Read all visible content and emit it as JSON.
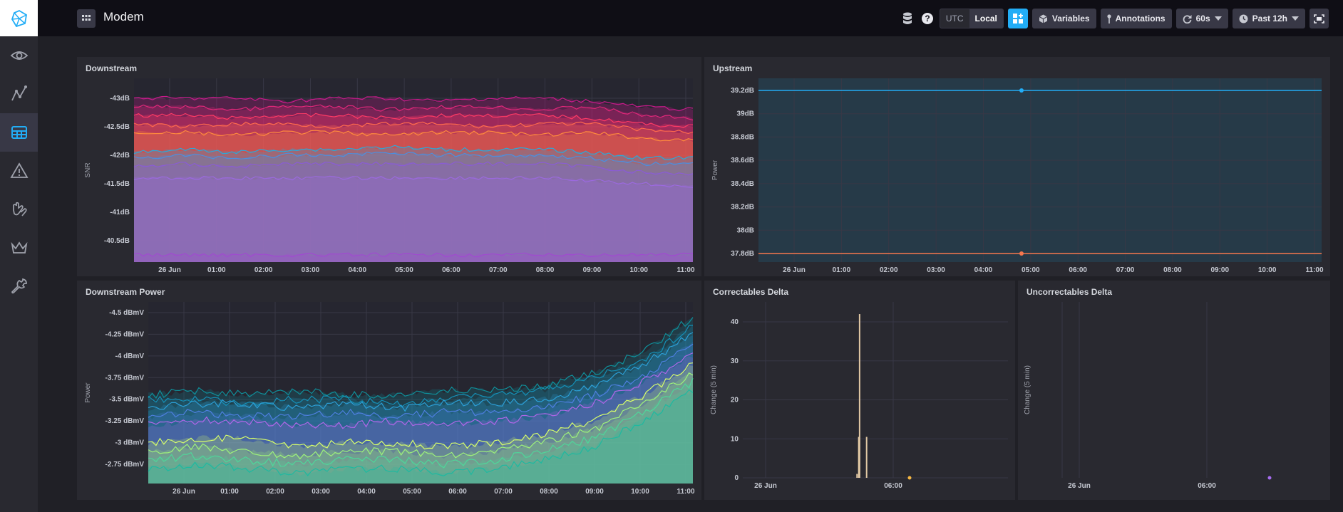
{
  "header": {
    "title": "Modem",
    "time_zone": {
      "utc": "UTC",
      "local": "Local",
      "selected": "Local"
    },
    "variables_label": "Variables",
    "annotations_label": "Annotations",
    "refresh_label": "60s",
    "range_label": "Past 12h"
  },
  "sidebar": {
    "items": [
      {
        "icon": "eye-icon",
        "active": false
      },
      {
        "icon": "graph-icon",
        "active": false
      },
      {
        "icon": "dashboard-grid-icon",
        "active": true
      },
      {
        "icon": "alert-triangle-icon",
        "active": false
      },
      {
        "icon": "gloves-icon",
        "active": false
      },
      {
        "icon": "crown-icon",
        "active": false
      },
      {
        "icon": "wrench-icon",
        "active": false
      }
    ]
  },
  "colors": {
    "accent": "#22adf6",
    "sidebar": "#292930",
    "panel": "#292930",
    "background": "#202026"
  },
  "panels": {
    "downstream": {
      "title": "Downstream"
    },
    "upstream": {
      "title": "Upstream"
    },
    "downstream_power": {
      "title": "Downstream Power"
    },
    "correctables": {
      "title": "Correctables Delta"
    },
    "uncorrectables": {
      "title": "Uncorrectables Delta"
    }
  },
  "chart_data": [
    {
      "id": "downstream",
      "type": "area",
      "title": "Downstream",
      "ylabel": "SNR",
      "yticks": [
        "-43dB",
        "-42.5dB",
        "-42dB",
        "-41.5dB",
        "-41dB",
        "-40.5dB"
      ],
      "xticks": [
        "26 Jun",
        "01:00",
        "02:00",
        "03:00",
        "04:00",
        "05:00",
        "06:00",
        "07:00",
        "08:00",
        "09:00",
        "10:00",
        "11:00"
      ],
      "series": [
        {
          "values": [
            -43.0,
            -43.0,
            -43.0,
            -42.95,
            -43.0,
            -43.0,
            -42.95,
            -43.0,
            -43.0,
            -42.95,
            -42.85,
            -42.8
          ],
          "color": "#c81a8b"
        },
        {
          "values": [
            -42.85,
            -42.85,
            -42.8,
            -42.85,
            -42.85,
            -42.8,
            -42.85,
            -42.85,
            -42.8,
            -42.85,
            -42.7,
            -42.65
          ],
          "color": "#e0277a"
        },
        {
          "values": [
            -42.7,
            -42.7,
            -42.65,
            -42.7,
            -42.7,
            -42.65,
            -42.7,
            -42.7,
            -42.7,
            -42.65,
            -42.55,
            -42.5
          ],
          "color": "#ff3a66"
        },
        {
          "values": [
            -42.55,
            -42.5,
            -42.55,
            -42.55,
            -42.5,
            -42.55,
            -42.55,
            -42.5,
            -42.55,
            -42.55,
            -42.45,
            -42.4
          ],
          "color": "#ff6a4d"
        },
        {
          "values": [
            -42.4,
            -42.4,
            -42.35,
            -42.4,
            -42.4,
            -42.35,
            -42.4,
            -42.4,
            -42.35,
            -42.4,
            -42.3,
            -42.25
          ],
          "color": "#ff8a3d"
        },
        {
          "values": [
            -42.05,
            -42.1,
            -42.05,
            -42.1,
            -42.1,
            -42.15,
            -42.1,
            -42.1,
            -42.1,
            -42.05,
            -41.95,
            -41.95
          ],
          "color": "#2ca8d8"
        },
        {
          "values": [
            -41.95,
            -42.0,
            -41.95,
            -42.0,
            -42.0,
            -42.05,
            -42.0,
            -42.0,
            -42.0,
            -41.95,
            -41.85,
            -41.85
          ],
          "color": "#4b8fe0"
        },
        {
          "values": [
            -41.8,
            -41.85,
            -41.8,
            -41.85,
            -41.85,
            -41.85,
            -41.85,
            -41.85,
            -41.85,
            -41.8,
            -41.7,
            -41.65
          ],
          "color": "#8a5cd6"
        },
        {
          "values": [
            -41.6,
            -41.6,
            -41.6,
            -41.6,
            -41.6,
            -41.6,
            -41.6,
            -41.6,
            -41.6,
            -41.55,
            -41.5,
            -41.45
          ],
          "color": "#9b6ade"
        },
        {
          "values": [
            -40.25,
            -40.25,
            -40.25,
            -40.25,
            -40.25,
            -40.25,
            -40.25,
            -40.25,
            -40.25,
            -40.25,
            -40.25,
            -40.25
          ],
          "color": "#a04ad0"
        }
      ]
    },
    {
      "id": "upstream",
      "type": "line",
      "title": "Upstream",
      "ylabel": "Power",
      "yticks": [
        "39.2dB",
        "39dB",
        "38.8dB",
        "38.6dB",
        "38.4dB",
        "38.2dB",
        "38dB",
        "37.8dB"
      ],
      "xticks": [
        "26 Jun",
        "01:00",
        "02:00",
        "03:00",
        "04:00",
        "05:00",
        "06:00",
        "07:00",
        "08:00",
        "09:00",
        "10:00",
        "11:00"
      ],
      "series": [
        {
          "values": [
            39.2,
            39.2
          ],
          "color": "#22adf6"
        },
        {
          "values": [
            37.8,
            37.8
          ],
          "color": "#f5774e"
        }
      ]
    },
    {
      "id": "downstream_power",
      "type": "area",
      "title": "Downstream Power",
      "ylabel": "Power",
      "yticks": [
        "-4.5 dBmV",
        "-4.25 dBmV",
        "-4 dBmV",
        "-3.75 dBmV",
        "-3.5 dBmV",
        "-3.25 dBmV",
        "-3 dBmV",
        "-2.75 dBmV"
      ],
      "xticks": [
        "26 Jun",
        "01:00",
        "02:00",
        "03:00",
        "04:00",
        "05:00",
        "06:00",
        "07:00",
        "08:00",
        "09:00",
        "10:00",
        "11:00"
      ],
      "series": [
        {
          "values": [
            -3.55,
            -3.6,
            -3.55,
            -3.6,
            -3.55,
            -3.55,
            -3.6,
            -3.6,
            -3.65,
            -3.8,
            -4.05,
            -4.45
          ],
          "color": "#0f8f9a"
        },
        {
          "values": [
            -3.5,
            -3.5,
            -3.45,
            -3.5,
            -3.5,
            -3.45,
            -3.5,
            -3.55,
            -3.6,
            -3.75,
            -3.95,
            -4.35
          ],
          "color": "#1590b7"
        },
        {
          "values": [
            -3.4,
            -3.45,
            -3.45,
            -3.4,
            -3.45,
            -3.4,
            -3.45,
            -3.45,
            -3.5,
            -3.65,
            -3.9,
            -4.25
          ],
          "color": "#2c9fd6"
        },
        {
          "values": [
            -3.3,
            -3.35,
            -3.3,
            -3.3,
            -3.35,
            -3.3,
            -3.35,
            -3.35,
            -3.4,
            -3.55,
            -3.75,
            -4.15
          ],
          "color": "#4e7fe0"
        },
        {
          "values": [
            -3.2,
            -3.25,
            -3.25,
            -3.2,
            -3.2,
            -3.25,
            -3.2,
            -3.25,
            -3.3,
            -3.45,
            -3.7,
            -4.0
          ],
          "color": "#b066e8"
        },
        {
          "values": [
            -3.0,
            -3.05,
            -3.05,
            -2.95,
            -3.0,
            -3.0,
            -2.95,
            -3.0,
            -3.1,
            -3.25,
            -3.55,
            -3.9
          ],
          "color": "#d8ff6a"
        },
        {
          "values": [
            -2.9,
            -2.95,
            -2.9,
            -2.85,
            -2.9,
            -2.9,
            -2.85,
            -2.9,
            -3.0,
            -3.15,
            -3.45,
            -3.8
          ],
          "color": "#9ef27a"
        },
        {
          "values": [
            -2.8,
            -2.85,
            -2.8,
            -2.75,
            -2.8,
            -2.8,
            -2.75,
            -2.8,
            -2.9,
            -3.05,
            -3.35,
            -3.7
          ],
          "color": "#4fd69a"
        },
        {
          "values": [
            -2.7,
            -2.75,
            -2.7,
            -2.65,
            -2.7,
            -2.7,
            -2.65,
            -2.7,
            -2.8,
            -2.95,
            -3.25,
            -3.6
          ],
          "color": "#1fb9a0"
        }
      ]
    },
    {
      "id": "correctables",
      "type": "bar",
      "title": "Correctables Delta",
      "ylabel": "Change (5 min)",
      "yticks": [
        "40",
        "30",
        "20",
        "10",
        "0"
      ],
      "ylim": [
        0,
        40
      ],
      "xticks": [
        "26 Jun",
        "06:00"
      ],
      "x": [
        4.3,
        4.38,
        4.42,
        4.75
      ],
      "values": [
        1,
        10.5,
        42,
        10.5
      ],
      "xlim": [
        -0.5,
        12
      ],
      "color": "#e2c9a5"
    },
    {
      "id": "uncorrectables",
      "type": "bar",
      "title": "Uncorrectables Delta",
      "ylabel": "Change (5 min)",
      "yticks": [],
      "xticks": [
        "26 Jun",
        "06:00"
      ],
      "values": []
    }
  ]
}
